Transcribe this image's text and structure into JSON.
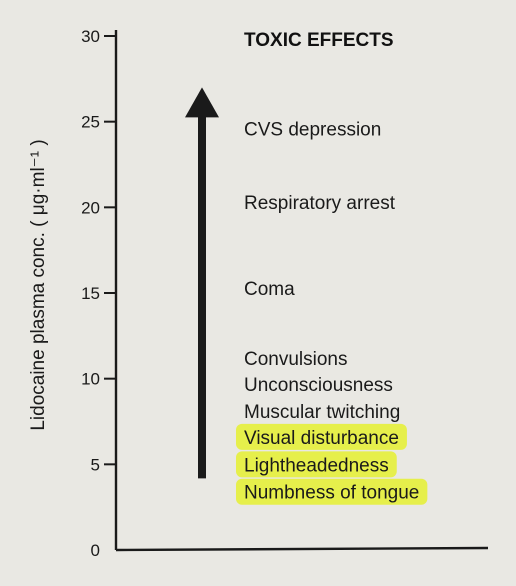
{
  "chart_data": {
    "type": "table",
    "title": "TOXIC EFFECTS",
    "ylabel": "Lidocaine plasma conc. ( μg·ml⁻¹ )",
    "ylim": [
      0,
      30
    ],
    "yticks": [
      0,
      5,
      10,
      15,
      20,
      25,
      30
    ],
    "arrow": {
      "from": 5,
      "to": 27,
      "direction": "up"
    },
    "effects": [
      {
        "label": "CVS depression",
        "y": 24.6,
        "highlighted": false
      },
      {
        "label": "Respiratory arrest",
        "y": 20.3,
        "highlighted": false
      },
      {
        "label": "Coma",
        "y": 15.3,
        "highlighted": false
      },
      {
        "label": "Convulsions",
        "y": 11.2,
        "highlighted": false
      },
      {
        "label": "Unconsciousness",
        "y": 9.7,
        "highlighted": false
      },
      {
        "label": "Muscular twitching",
        "y": 8.1,
        "highlighted": false
      },
      {
        "label": "Visual disturbance",
        "y": 6.6,
        "highlighted": true
      },
      {
        "label": "Lightheadedness",
        "y": 5.0,
        "highlighted": true
      },
      {
        "label": "Numbness of tongue",
        "y": 3.4,
        "highlighted": true
      }
    ],
    "colors": {
      "highlight": "#e6f03a",
      "ink": "#1a1a1a",
      "paper": "#e9e8e3"
    }
  }
}
